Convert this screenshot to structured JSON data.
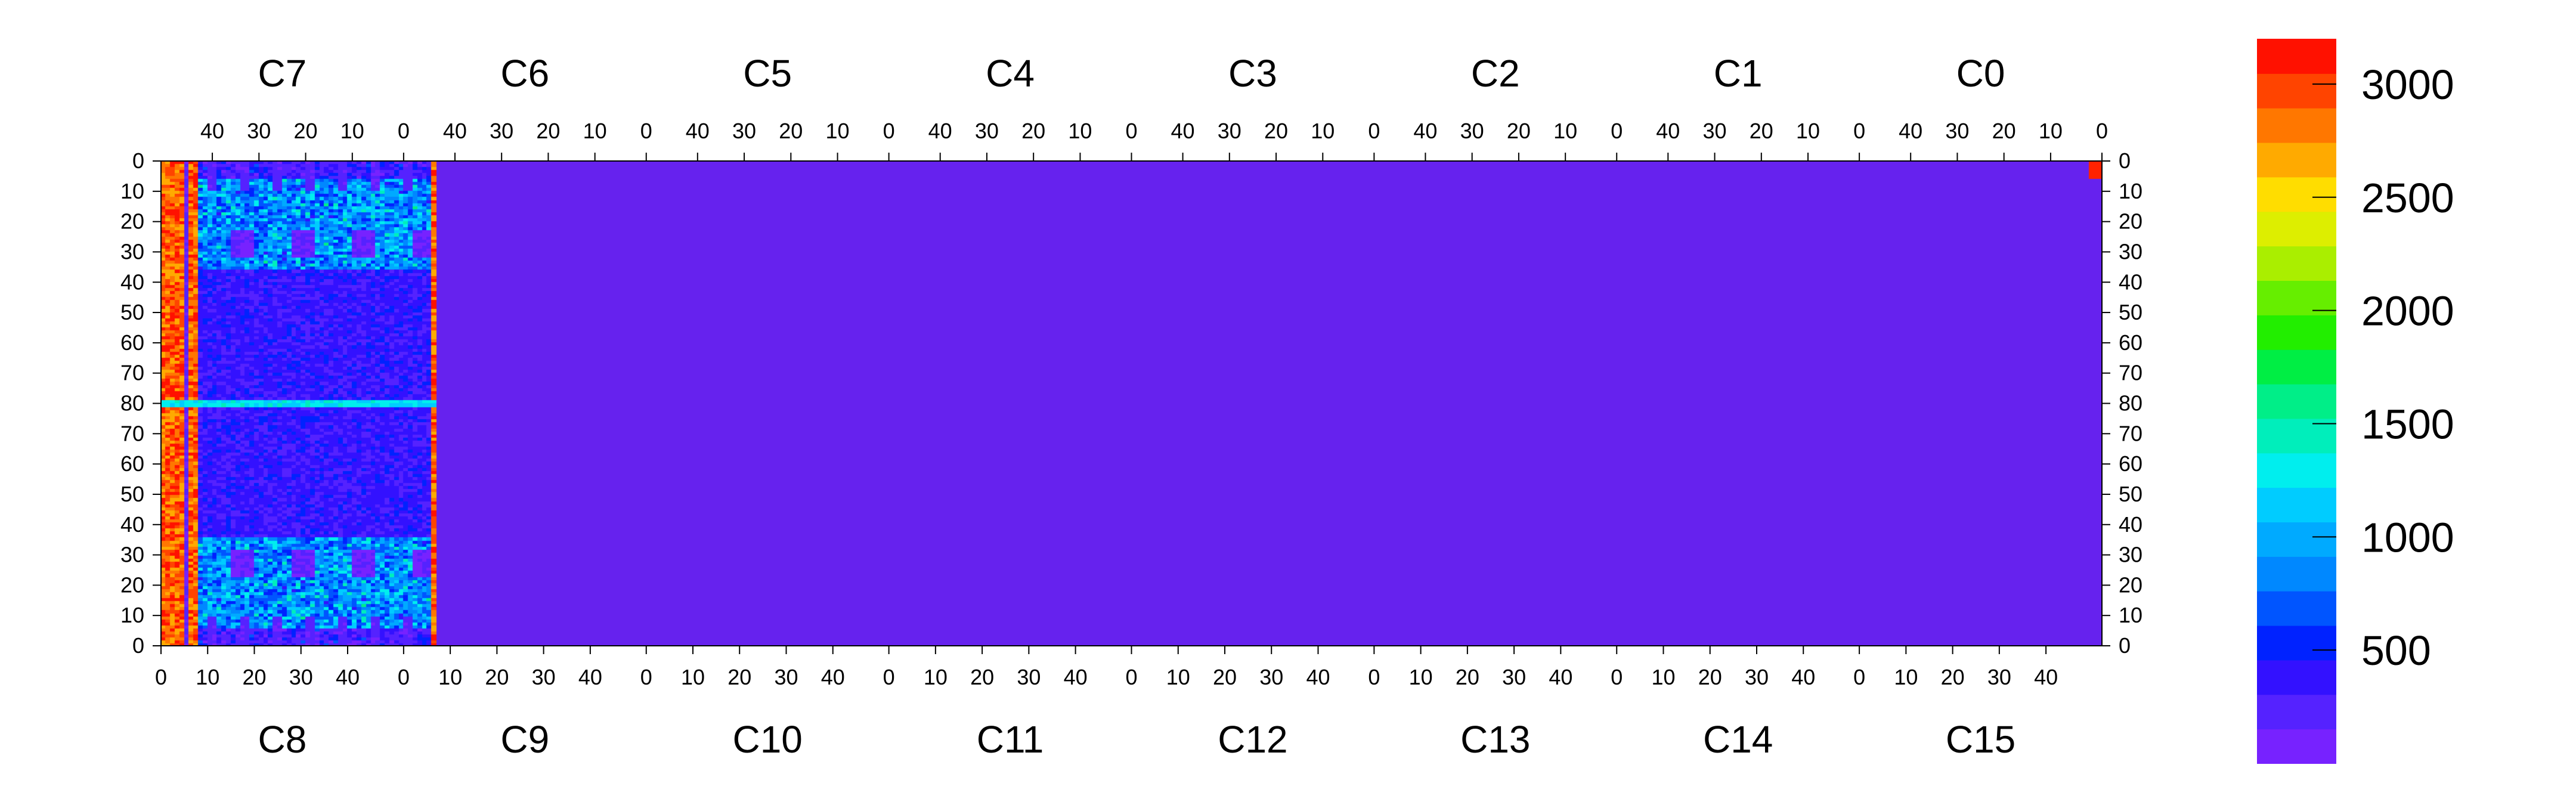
{
  "chart_data": {
    "type": "heatmap",
    "title": "",
    "chips_top": [
      "C7",
      "C6",
      "C5",
      "C4",
      "C3",
      "C2",
      "C1",
      "C0"
    ],
    "chips_bottom": [
      "C8",
      "C9",
      "C10",
      "C11",
      "C12",
      "C13",
      "C14",
      "C15"
    ],
    "top_axis_ticks": [
      "40",
      "30",
      "20",
      "10",
      "0"
    ],
    "bottom_axis_ticks": [
      "0",
      "10",
      "20",
      "30",
      "40"
    ],
    "left_axis_ticks": [
      "0",
      "10",
      "20",
      "30",
      "40",
      "50",
      "60",
      "70",
      "80",
      "70",
      "60",
      "50",
      "40",
      "30",
      "20",
      "10",
      "0"
    ],
    "right_axis_ticks": [
      "0",
      "10",
      "20",
      "30",
      "40",
      "50",
      "60",
      "70",
      "80",
      "70",
      "60",
      "50",
      "40",
      "30",
      "20",
      "10",
      "0"
    ],
    "columns_per_chip": 52,
    "rows_per_half": 80,
    "colorbar": {
      "min": 0,
      "max": 3200,
      "tick_values": [
        500,
        1000,
        1500,
        2000,
        2500,
        3000
      ],
      "tick_labels": [
        "500",
        "1000",
        "1500",
        "2000",
        "2500",
        "3000"
      ],
      "colors": [
        "#7722ff",
        "#5522ff",
        "#3311ff",
        "#0022ff",
        "#0055ff",
        "#0088ff",
        "#00aaff",
        "#00ccff",
        "#00eeee",
        "#00eebb",
        "#00ee88",
        "#00ee44",
        "#22ee00",
        "#66ee00",
        "#aaee00",
        "#ddee00",
        "#ffdd00",
        "#ffaa00",
        "#ff7700",
        "#ff4400",
        "#ff1100"
      ]
    },
    "regions": [
      {
        "description": "hot column (~3000) at column 0 between chips",
        "value": 3000
      },
      {
        "description": "row-80 boundary stripe",
        "value": 1000
      },
      {
        "description": "chip C2/C13 mostly dead with sparse white pixels",
        "value": 0
      }
    ]
  }
}
